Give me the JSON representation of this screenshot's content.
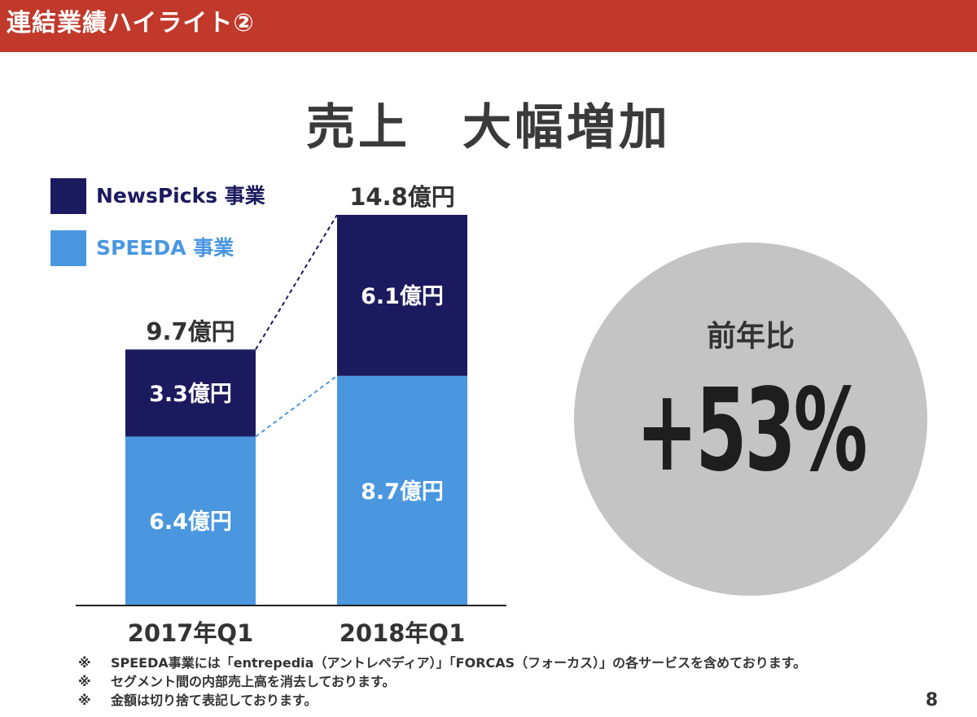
{
  "header": {
    "title": "連結業績ハイライト②",
    "color": "#c0392b"
  },
  "main_title": "売上　大幅増加",
  "legend": [
    {
      "label": "NewsPicks 事業",
      "color": "#1c1a5e"
    },
    {
      "label": "SPEEDA 事業",
      "color": "#4a97e0"
    }
  ],
  "chart_data": {
    "type": "bar",
    "stacked": true,
    "categories": [
      "2017年Q1",
      "2018年Q1"
    ],
    "series": [
      {
        "name": "SPEEDA 事業",
        "values": [
          6.4,
          8.7
        ],
        "labels": [
          "6.4億円",
          "8.7億円"
        ],
        "color": "#4a97e0"
      },
      {
        "name": "NewsPicks 事業",
        "values": [
          3.3,
          6.1
        ],
        "labels": [
          "3.3億円",
          "6.1億円"
        ],
        "color": "#1c1a5e"
      }
    ],
    "totals": [
      9.7,
      14.8
    ],
    "total_labels": [
      "9.7億円",
      "14.8億円"
    ],
    "unit": "億円",
    "ylim": [
      0,
      14.8
    ],
    "grid": false,
    "legend_position": "top-left"
  },
  "yoy": {
    "label": "前年比",
    "value": "+53%"
  },
  "notes": [
    {
      "mark": "※",
      "text": "SPEEDA事業には「entrepedia（アントレペディア）」「FORCAS（フォーカス）」の各サービスを含めております。"
    },
    {
      "mark": "※",
      "text": "セグメント間の内部売上高を消去しております。"
    },
    {
      "mark": "※",
      "text": "金額は切り捨て表記しております。"
    }
  ],
  "page_number": "8"
}
